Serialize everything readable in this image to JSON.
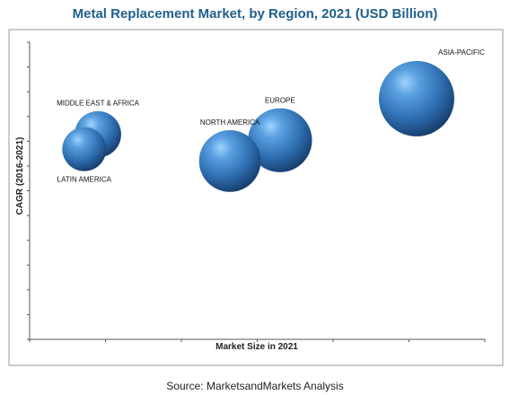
{
  "chart_data": {
    "type": "scatter",
    "title": "Metal Replacement Market, by Region, 2021 (USD Billion)",
    "xlabel": "Market Size in 2021",
    "ylabel": "CAGR (2016-2021)",
    "xlim": [
      0,
      10
    ],
    "ylim": [
      0,
      10
    ],
    "grid": false,
    "points": [
      {
        "label": "ASIA-PACIFIC",
        "x": 8.5,
        "y": 8.1,
        "size": 10
      },
      {
        "label": "EUROPE",
        "x": 5.5,
        "y": 6.7,
        "size": 7.2
      },
      {
        "label": "NORTH AMERICA",
        "x": 4.4,
        "y": 6.0,
        "size": 6.7
      },
      {
        "label": "MIDDLE EAST & AFRICA",
        "x": 1.5,
        "y": 6.9,
        "size": 3.8
      },
      {
        "label": "LATIN AMERICA",
        "x": 1.2,
        "y": 6.4,
        "size": 3.4
      }
    ]
  },
  "source": "Source:  MarketsandMarkets Analysis"
}
